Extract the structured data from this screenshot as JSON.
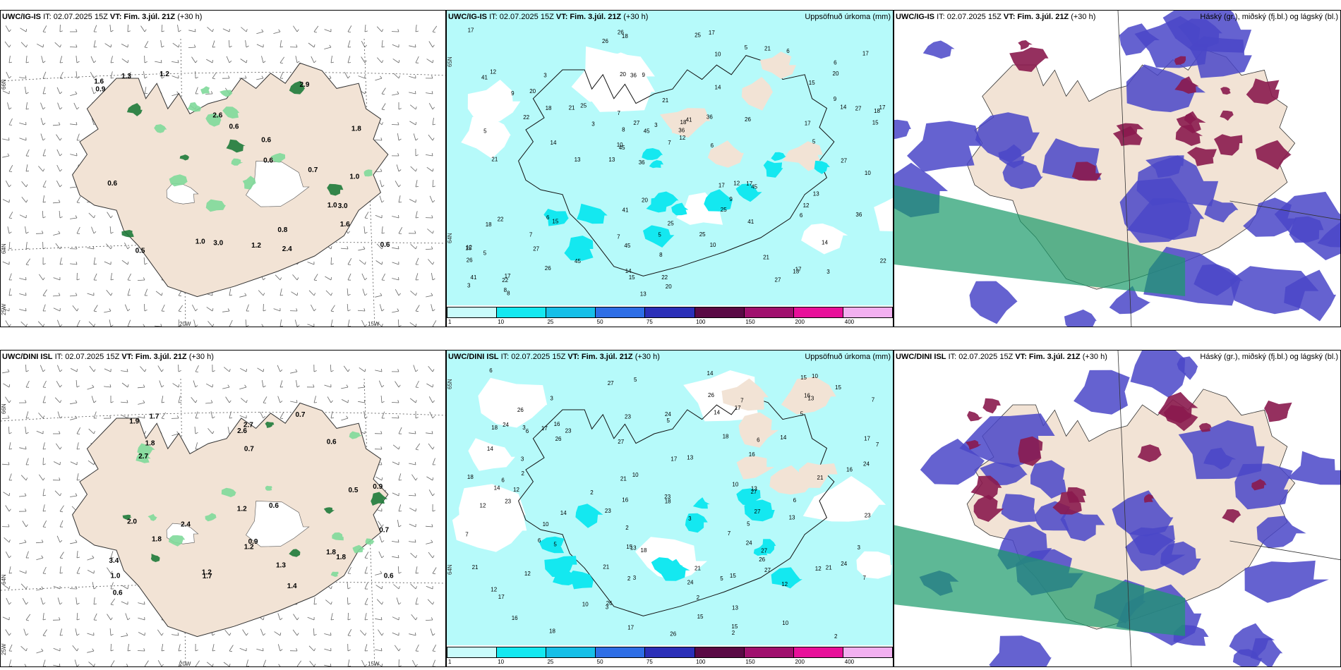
{
  "rows": [
    {
      "model": "UWC/IG-IS",
      "it_label": "IT: 02.07.2025 15Z",
      "vt_label": "VT: Fim. 3.júl. 21Z",
      "lead": "(+30 h)"
    },
    {
      "model": "UWC/DINI ISL",
      "it_label": "IT: 02.07.2025 15Z",
      "vt_label": "VT: Fim. 3.júl. 21Z",
      "lead": "(+30 h)"
    }
  ],
  "panels": {
    "wind": {
      "axis": {
        "lat66": "66N",
        "lat64": "64N",
        "lon25": "25W",
        "lon20": "20W",
        "lon15": "15W"
      }
    },
    "precip": {
      "title": "Uppsöfnuð úrkoma (mm)",
      "axis": {
        "lat65": "65N",
        "lat64": "64N"
      },
      "colorbar": {
        "ticks": [
          "1",
          "10",
          "25",
          "50",
          "75",
          "100",
          "150",
          "200",
          "400"
        ],
        "colors": [
          "#c9fbfb",
          "#14e8f0",
          "#16bfe8",
          "#2e6ee6",
          "#2b2fb8",
          "#5a0a45",
          "#a0106e",
          "#e8109a",
          "#f2b0f0"
        ]
      }
    },
    "cloud": {
      "title": "Háský (gr.), miðský (fj.bl.) og lágský (bl.)"
    }
  },
  "colors": {
    "land": "#f2e3d5",
    "precip_light": "#b6fafa",
    "precip_mid": "#14e8f0",
    "cloud_low": "#4a47c8",
    "cloud_mid": "#8a1a4e",
    "cloud_high": "#1a9a6a"
  },
  "precip_labels_top": [
    "3",
    "5",
    "6",
    "13",
    "14",
    "17",
    "20",
    "21",
    "22",
    "25",
    "26",
    "27",
    "36",
    "41",
    "45",
    "12",
    "18",
    "15",
    "17",
    "9",
    "10",
    "7",
    "8"
  ],
  "precip_labels_bot": [
    "2",
    "3",
    "5",
    "6",
    "7",
    "10",
    "12",
    "13",
    "14",
    "15",
    "16",
    "17",
    "18",
    "21",
    "23",
    "24",
    "26",
    "27"
  ],
  "wind_labels_top": [
    "0.6",
    "1.8",
    "1.2",
    "0.9",
    "1.0",
    "0.8",
    "2.6",
    "3.0",
    "1.0",
    "0.6",
    "3.0",
    "0.7",
    "1.6",
    "0.6",
    "1.3",
    "1.2",
    "2.4",
    "1.0",
    "1.6",
    "2.9",
    "0.5",
    "0.6",
    "0.6"
  ],
  "wind_labels_bot": [
    "0.7",
    "2.4",
    "1.8",
    "2.0",
    "1.7",
    "1.2",
    "1.2",
    "1.4",
    "1.8",
    "3.4",
    "2.6",
    "1.7",
    "1.2",
    "1.8",
    "0.5",
    "0.6",
    "1.9",
    "0.9",
    "1.0",
    "0.6",
    "0.7",
    "1.8",
    "0.9",
    "2.7",
    "0.7",
    "2.7",
    "0.6",
    "0.6",
    "1.3"
  ]
}
